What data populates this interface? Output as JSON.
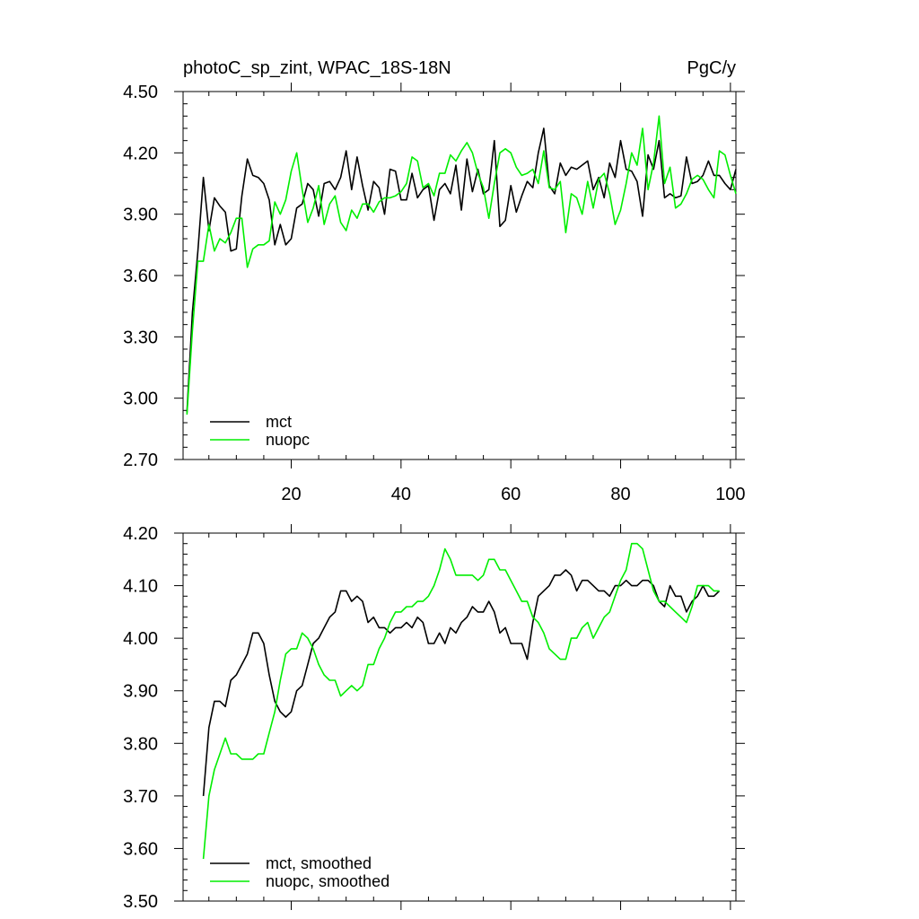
{
  "chart_data": [
    {
      "type": "line",
      "title": "photoC_sp_zint, WPAC_18S-18N",
      "units": "PgC/y",
      "xlim": [
        0.3,
        101
      ],
      "ylim": [
        2.7,
        4.5
      ],
      "xticks": [
        20,
        40,
        60,
        80,
        100
      ],
      "xtick_labels": [
        "20",
        "40",
        "60",
        "80",
        "100"
      ],
      "yticks": [
        2.7,
        3.0,
        3.3,
        3.6,
        3.9,
        4.2,
        4.5
      ],
      "ytick_labels": [
        "2.70",
        "3.00",
        "3.30",
        "3.60",
        "3.90",
        "4.20",
        "4.50"
      ],
      "legend": "bottom-left",
      "series": [
        {
          "name": "mct",
          "color": "#000000",
          "x0": 1,
          "values": [
            2.93,
            3.42,
            3.72,
            4.08,
            3.82,
            3.98,
            3.94,
            3.91,
            3.72,
            3.73,
            3.99,
            4.17,
            4.09,
            4.08,
            4.05,
            3.97,
            3.75,
            3.85,
            3.75,
            3.78,
            3.93,
            3.95,
            4.05,
            4.02,
            3.89,
            4.05,
            4.06,
            4.02,
            4.08,
            4.21,
            4.02,
            4.18,
            4.04,
            3.92,
            4.06,
            4.03,
            3.9,
            4.12,
            4.11,
            3.97,
            3.97,
            4.1,
            3.98,
            4.02,
            4.04,
            3.87,
            4.02,
            4.05,
            4.0,
            4.14,
            3.92,
            4.17,
            4.01,
            4.12,
            4.0,
            4.02,
            4.26,
            3.84,
            3.87,
            4.04,
            3.91,
            3.99,
            4.06,
            4.03,
            4.2,
            4.32,
            4.04,
            4.0,
            4.15,
            4.09,
            4.13,
            4.12,
            4.14,
            4.16,
            4.02,
            4.08,
            3.98,
            4.15,
            4.08,
            4.26,
            4.12,
            4.11,
            4.06,
            3.89,
            4.19,
            4.12,
            4.26,
            3.98,
            4.0,
            3.98,
            3.99,
            4.18,
            4.05,
            4.06,
            4.09,
            4.16,
            4.09,
            4.09,
            4.05,
            4.02,
            4.12
          ]
        },
        {
          "name": "nuopc",
          "color": "#00ee00",
          "x0": 1,
          "values": [
            2.92,
            3.33,
            3.67,
            3.67,
            3.85,
            3.72,
            3.78,
            3.76,
            3.81,
            3.88,
            3.88,
            3.64,
            3.73,
            3.75,
            3.75,
            3.77,
            3.96,
            3.9,
            3.97,
            4.11,
            4.2,
            4.02,
            3.86,
            3.93,
            4.04,
            3.85,
            3.95,
            3.99,
            3.86,
            3.82,
            3.92,
            3.88,
            3.95,
            3.95,
            3.91,
            3.96,
            3.98,
            3.98,
            3.99,
            4.01,
            4.05,
            4.18,
            4.16,
            4.03,
            4.05,
            3.99,
            4.1,
            4.1,
            4.19,
            4.16,
            4.21,
            4.25,
            4.2,
            4.1,
            4.03,
            3.88,
            4.05,
            4.2,
            4.22,
            4.2,
            4.13,
            4.09,
            4.1,
            4.12,
            4.05,
            4.21,
            4.03,
            4.02,
            4.06,
            3.81,
            4.0,
            3.98,
            3.9,
            4.06,
            3.93,
            4.07,
            4.1,
            4.0,
            3.85,
            3.92,
            4.05,
            4.2,
            4.14,
            4.32,
            4.02,
            4.15,
            4.38,
            4.05,
            4.13,
            3.93,
            3.95,
            4.0,
            4.07,
            4.09,
            4.07,
            4.02,
            3.98,
            4.21,
            4.19,
            4.09,
            4.0
          ]
        }
      ]
    },
    {
      "type": "line",
      "title": "",
      "xlim": [
        0.3,
        101
      ],
      "ylim": [
        3.5,
        4.2
      ],
      "xticks": [
        20,
        40,
        60,
        80,
        100
      ],
      "yticks": [
        3.5,
        3.6,
        3.7,
        3.8,
        3.9,
        4.0,
        4.1,
        4.2
      ],
      "ytick_labels": [
        "3.50",
        "3.60",
        "3.70",
        "3.80",
        "3.90",
        "4.00",
        "4.10",
        "4.20"
      ],
      "legend": "bottom-left",
      "series": [
        {
          "name": "mct, smoothed",
          "color": "#000000",
          "x0": 4,
          "values": [
            3.7,
            3.83,
            3.88,
            3.88,
            3.87,
            3.92,
            3.93,
            3.95,
            3.97,
            4.01,
            4.01,
            3.99,
            3.93,
            3.88,
            3.86,
            3.85,
            3.86,
            3.9,
            3.91,
            3.95,
            3.99,
            4.0,
            4.02,
            4.04,
            4.05,
            4.09,
            4.09,
            4.07,
            4.08,
            4.07,
            4.03,
            4.04,
            4.02,
            4.02,
            4.01,
            4.02,
            4.02,
            4.03,
            4.02,
            4.04,
            4.03,
            3.99,
            3.99,
            4.01,
            3.99,
            4.02,
            4.01,
            4.03,
            4.04,
            4.06,
            4.05,
            4.05,
            4.07,
            4.05,
            4.01,
            4.02,
            3.99,
            3.99,
            3.99,
            3.96,
            4.03,
            4.08,
            4.09,
            4.1,
            4.12,
            4.12,
            4.13,
            4.12,
            4.09,
            4.11,
            4.11,
            4.1,
            4.09,
            4.09,
            4.08,
            4.1,
            4.1,
            4.11,
            4.1,
            4.1,
            4.11,
            4.11,
            4.1,
            4.07,
            4.06,
            4.1,
            4.08,
            4.08,
            4.05,
            4.07,
            4.08,
            4.1,
            4.08,
            4.08,
            4.09
          ]
        },
        {
          "name": "nuopc, smoothed",
          "color": "#00ee00",
          "x0": 4,
          "values": [
            3.58,
            3.7,
            3.75,
            3.78,
            3.81,
            3.78,
            3.78,
            3.77,
            3.77,
            3.77,
            3.78,
            3.78,
            3.82,
            3.86,
            3.92,
            3.97,
            3.98,
            3.98,
            4.01,
            4.0,
            3.98,
            3.95,
            3.93,
            3.92,
            3.92,
            3.89,
            3.9,
            3.91,
            3.9,
            3.91,
            3.95,
            3.95,
            3.98,
            4.0,
            4.03,
            4.05,
            4.05,
            4.06,
            4.06,
            4.07,
            4.07,
            4.08,
            4.1,
            4.13,
            4.17,
            4.15,
            4.12,
            4.12,
            4.12,
            4.12,
            4.11,
            4.12,
            4.15,
            4.15,
            4.13,
            4.13,
            4.11,
            4.09,
            4.07,
            4.07,
            4.04,
            4.03,
            4.01,
            3.98,
            3.97,
            3.96,
            3.96,
            4.0,
            4.0,
            4.02,
            4.03,
            4.0,
            4.02,
            4.04,
            4.05,
            4.08,
            4.11,
            4.13,
            4.18,
            4.18,
            4.17,
            4.13,
            4.09,
            4.07,
            4.07,
            4.06,
            4.05,
            4.04,
            4.03,
            4.06,
            4.1,
            4.1,
            4.1,
            4.09,
            4.09
          ]
        }
      ]
    }
  ]
}
